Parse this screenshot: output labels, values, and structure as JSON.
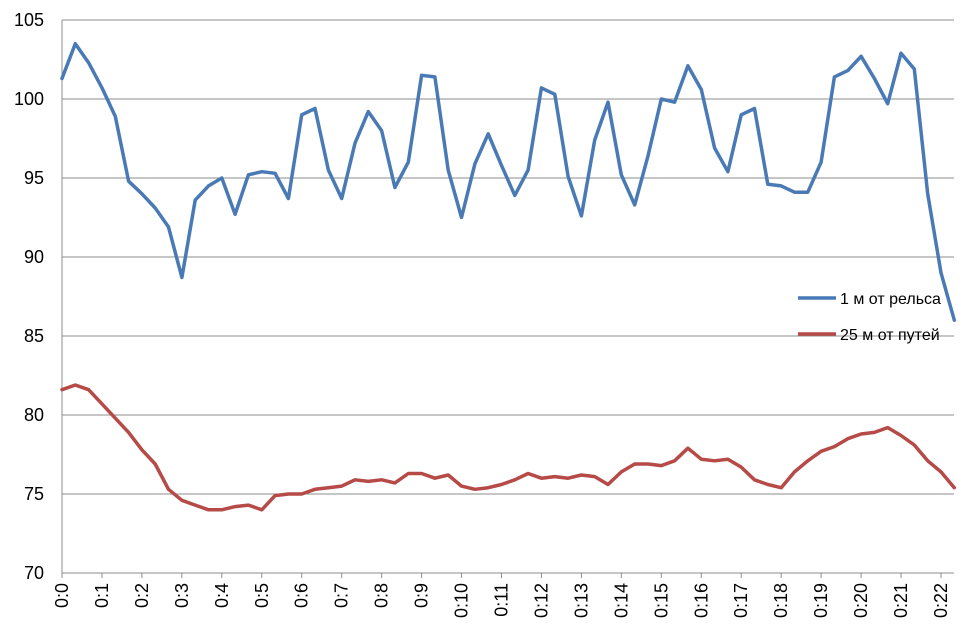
{
  "chart_data": {
    "type": "line",
    "x_ticks": [
      "0:0",
      "0:1",
      "0:2",
      "0:3",
      "0:4",
      "0:5",
      "0:6",
      "0:7",
      "0:8",
      "0:9",
      "0:10",
      "0:11",
      "0:12",
      "0:13",
      "0:14",
      "0:15",
      "0:16",
      "0:17",
      "0:18",
      "0:19",
      "0:20",
      "0:21",
      "0:22"
    ],
    "ylim": [
      70,
      105
    ],
    "y_ticks": [
      70,
      75,
      80,
      85,
      90,
      95,
      100,
      105
    ],
    "grid": "horizontal",
    "legend": "right",
    "points_per_minute": 3,
    "series": [
      {
        "name": "1 м от рельса",
        "color": "#4a7ab5",
        "values": [
          101.3,
          103.5,
          102.3,
          100.7,
          98.9,
          94.8,
          94.0,
          93.1,
          91.9,
          88.7,
          93.6,
          94.5,
          95.0,
          92.7,
          95.2,
          95.4,
          95.3,
          93.7,
          99.0,
          99.4,
          95.5,
          93.7,
          97.2,
          99.2,
          98.0,
          94.4,
          96.0,
          101.5,
          101.4,
          95.5,
          92.5,
          95.9,
          97.8,
          95.8,
          93.9,
          95.5,
          100.7,
          100.3,
          95.1,
          92.6,
          97.4,
          99.8,
          95.2,
          93.3,
          96.4,
          100.0,
          99.8,
          102.1,
          100.6,
          96.9,
          95.4,
          99.0,
          99.4,
          94.6,
          94.5,
          94.1,
          94.1,
          96.0,
          101.4,
          101.8,
          102.7,
          101.3,
          99.7,
          102.9,
          101.9,
          94.0,
          89.0,
          86.0
        ]
      },
      {
        "name": "25 м от путей",
        "color": "#b54a47",
        "values": [
          81.6,
          81.9,
          81.6,
          80.7,
          79.8,
          78.9,
          77.8,
          76.9,
          75.3,
          74.6,
          74.3,
          74.0,
          74.0,
          74.2,
          74.3,
          74.0,
          74.9,
          75.0,
          75.0,
          75.3,
          75.4,
          75.5,
          75.9,
          75.8,
          75.9,
          75.7,
          76.3,
          76.3,
          76.0,
          76.2,
          75.5,
          75.3,
          75.4,
          75.6,
          75.9,
          76.3,
          76.0,
          76.1,
          76.0,
          76.2,
          76.1,
          75.6,
          76.4,
          76.9,
          76.9,
          76.8,
          77.1,
          77.9,
          77.2,
          77.1,
          77.2,
          76.7,
          75.9,
          75.6,
          75.4,
          76.4,
          77.1,
          77.7,
          78.0,
          78.5,
          78.8,
          78.9,
          79.2,
          78.7,
          78.1,
          77.1,
          76.4,
          75.4
        ]
      }
    ]
  }
}
